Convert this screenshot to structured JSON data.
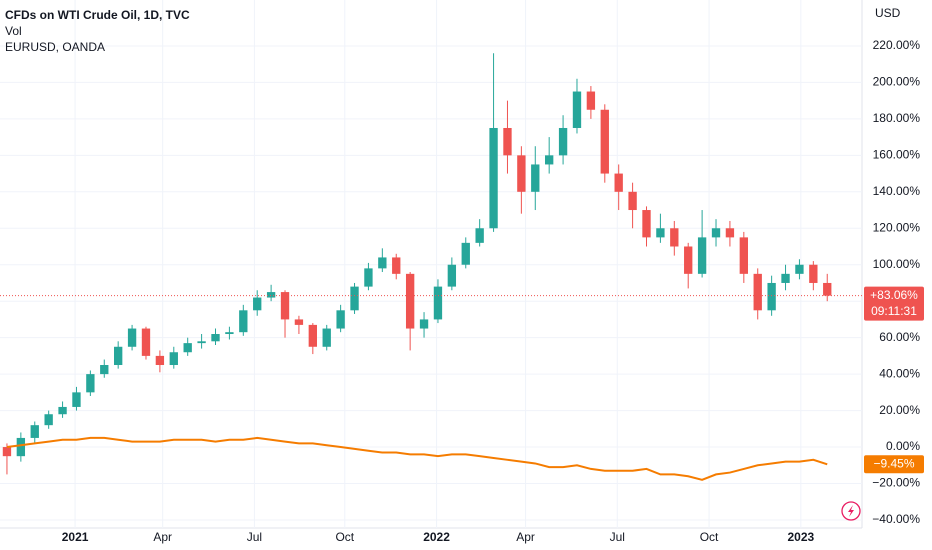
{
  "chart_data": {
    "type": "candlestick",
    "title": "CFDs on WTI Crude Oil, 1D, TVC",
    "subtitle": "Vol",
    "unit": "USD",
    "x": [
      0,
      1,
      2,
      3,
      4,
      5,
      6,
      7,
      8,
      9,
      10,
      11,
      12,
      13,
      14,
      15,
      16,
      17,
      18,
      19,
      20,
      21,
      22,
      23,
      24,
      25,
      26,
      27,
      28,
      29,
      30,
      31,
      32,
      33,
      34,
      35,
      36,
      37,
      38,
      39,
      40,
      41,
      42,
      43,
      44,
      45,
      46,
      47,
      48,
      49,
      50,
      51,
      52,
      53,
      54,
      55,
      56,
      57,
      58,
      59
    ],
    "xlim": [
      -0.5,
      61.5
    ],
    "xticks": [
      {
        "value": 4.9,
        "label": "2021"
      },
      {
        "value": 11.2,
        "label": "Apr"
      },
      {
        "value": 17.8,
        "label": "Jul"
      },
      {
        "value": 24.3,
        "label": "Oct"
      },
      {
        "value": 30.9,
        "label": "2022"
      },
      {
        "value": 37.3,
        "label": "Apr"
      },
      {
        "value": 43.9,
        "label": "Jul"
      },
      {
        "value": 50.5,
        "label": "Oct"
      },
      {
        "value": 57.1,
        "label": "2023"
      }
    ],
    "ylim": [
      -44.4,
      245.2
    ],
    "yticks": [
      {
        "value": 220,
        "label": "220.00%"
      },
      {
        "value": 200,
        "label": "200.00%"
      },
      {
        "value": 180,
        "label": "180.00%"
      },
      {
        "value": 160,
        "label": "160.00%"
      },
      {
        "value": 140,
        "label": "140.00%"
      },
      {
        "value": 120,
        "label": "120.00%"
      },
      {
        "value": 100,
        "label": "100.00%"
      },
      {
        "value": 80,
        "label": "80.00%"
      },
      {
        "value": 60,
        "label": "60.00%"
      },
      {
        "value": 40,
        "label": "40.00%"
      },
      {
        "value": 20,
        "label": "20.00%"
      },
      {
        "value": 0,
        "label": "0.00%"
      },
      {
        "value": -20,
        "label": "−20.00%"
      },
      {
        "value": -40,
        "label": "−40.00%"
      }
    ],
    "grid": true,
    "up_color": "#26a69a",
    "down_color": "#ef5350",
    "open": [
      0,
      -5,
      5,
      12,
      18,
      22,
      30,
      40,
      45,
      55,
      65,
      50,
      45,
      52,
      57,
      58,
      62,
      63,
      75,
      82,
      85,
      70,
      67,
      55,
      65,
      75,
      88,
      98,
      104,
      95,
      65,
      70,
      88,
      100,
      112,
      120,
      175,
      160,
      140,
      155,
      160,
      175,
      195,
      185,
      150,
      140,
      130,
      115,
      120,
      110,
      95,
      115,
      120,
      115,
      95,
      75,
      90,
      95,
      100,
      90
    ],
    "high": [
      2,
      8,
      14,
      20,
      25,
      33,
      42,
      48,
      58,
      67,
      66,
      53,
      55,
      60,
      62,
      65,
      66,
      78,
      86,
      89,
      86,
      72,
      68,
      67,
      78,
      90,
      101,
      109,
      106,
      96,
      74,
      92,
      104,
      115,
      125,
      216,
      190,
      165,
      165,
      170,
      182,
      202,
      198,
      188,
      155,
      145,
      132,
      128,
      124,
      112,
      130,
      125,
      124,
      118,
      98,
      94,
      100,
      103,
      102,
      95
    ],
    "low": [
      -15,
      -8,
      2,
      10,
      16,
      20,
      28,
      38,
      43,
      53,
      48,
      41,
      43,
      50,
      54,
      56,
      59,
      61,
      72,
      80,
      60,
      62,
      51,
      53,
      63,
      73,
      86,
      96,
      92,
      53,
      60,
      68,
      86,
      98,
      110,
      118,
      150,
      128,
      130,
      150,
      155,
      172,
      180,
      145,
      130,
      120,
      110,
      112,
      105,
      87,
      93,
      110,
      110,
      90,
      70,
      72,
      86,
      92,
      86,
      80
    ],
    "close": [
      -5,
      5,
      12,
      18,
      22,
      30,
      40,
      45,
      55,
      65,
      50,
      45,
      52,
      57,
      58,
      62,
      63,
      75,
      82,
      85,
      70,
      67,
      55,
      65,
      75,
      88,
      98,
      104,
      95,
      65,
      70,
      88,
      100,
      112,
      120,
      175,
      160,
      140,
      155,
      160,
      175,
      195,
      185,
      150,
      140,
      130,
      115,
      120,
      110,
      95,
      115,
      120,
      115,
      95,
      75,
      90,
      95,
      100,
      90,
      83.06
    ],
    "last_label": "+83.06%",
    "countdown": "09:11:31",
    "series": [
      {
        "name": "EURUSD, OANDA",
        "color": "#f57c00",
        "last_label": "−9.45%",
        "values": [
          0,
          1,
          2,
          3,
          4,
          4,
          5,
          5,
          4,
          3,
          3,
          3,
          4,
          4,
          4,
          3,
          4,
          4,
          5,
          4,
          3,
          2,
          2,
          1,
          0,
          -1,
          -2,
          -3,
          -3,
          -4,
          -4,
          -5,
          -4,
          -4,
          -5,
          -6,
          -7,
          -8,
          -9,
          -11,
          -11,
          -10,
          -12,
          -13,
          -13,
          -13,
          -12,
          -15,
          -15,
          -16,
          -18,
          -15,
          -14,
          -12,
          -10,
          -9,
          -8,
          -8,
          -7,
          -9.45
        ]
      }
    ]
  }
}
